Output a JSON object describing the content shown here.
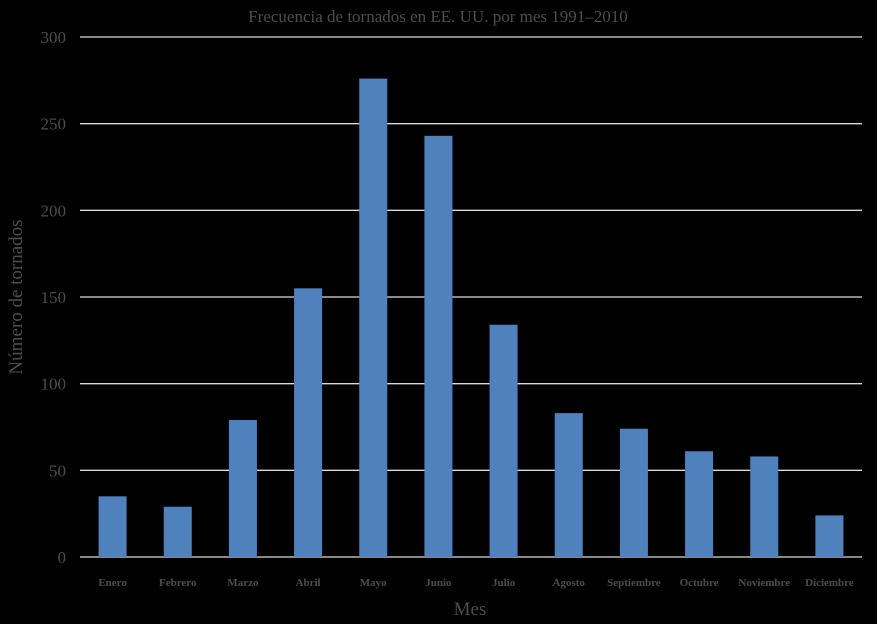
{
  "chart_data": {
    "type": "bar",
    "title": "Frecuencia de tornados en EE. UU. por mes 1991–2010",
    "xlabel": "Mes",
    "ylabel": "Número de tornados",
    "categories": [
      "Enero",
      "Febrero",
      "Marzo",
      "Abril",
      "Mayo",
      "Junio",
      "Julio",
      "Agosto",
      "Septiembre",
      "Octubre",
      "Noviembre",
      "Diciembre"
    ],
    "values": [
      35,
      29,
      79,
      155,
      276,
      243,
      134,
      83,
      74,
      61,
      58,
      24
    ],
    "ylim": [
      0,
      300
    ],
    "yticks": [
      "0",
      "50",
      "100",
      "150",
      "200",
      "250",
      "300"
    ],
    "grid": true,
    "legend": "none",
    "bar_color": "#4f81bd",
    "background_color": "#000000"
  }
}
